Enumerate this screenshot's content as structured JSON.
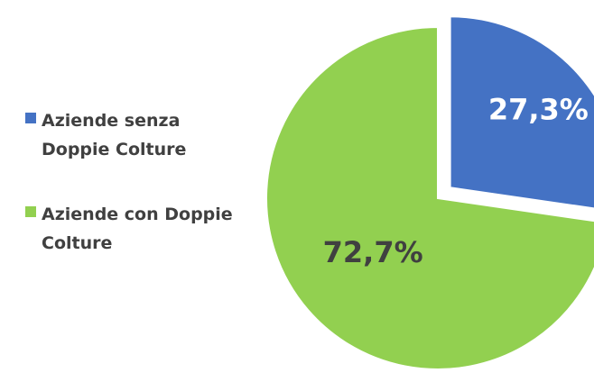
{
  "chart_data": {
    "type": "pie",
    "categories": [
      "Aziende senza Doppie Colture",
      "Aziende con Doppie Colture"
    ],
    "values": [
      27.3,
      72.7
    ],
    "value_labels": [
      "27,3%",
      "72,7%"
    ],
    "colors": [
      "#4472c4",
      "#92d050"
    ],
    "legend": "left"
  }
}
